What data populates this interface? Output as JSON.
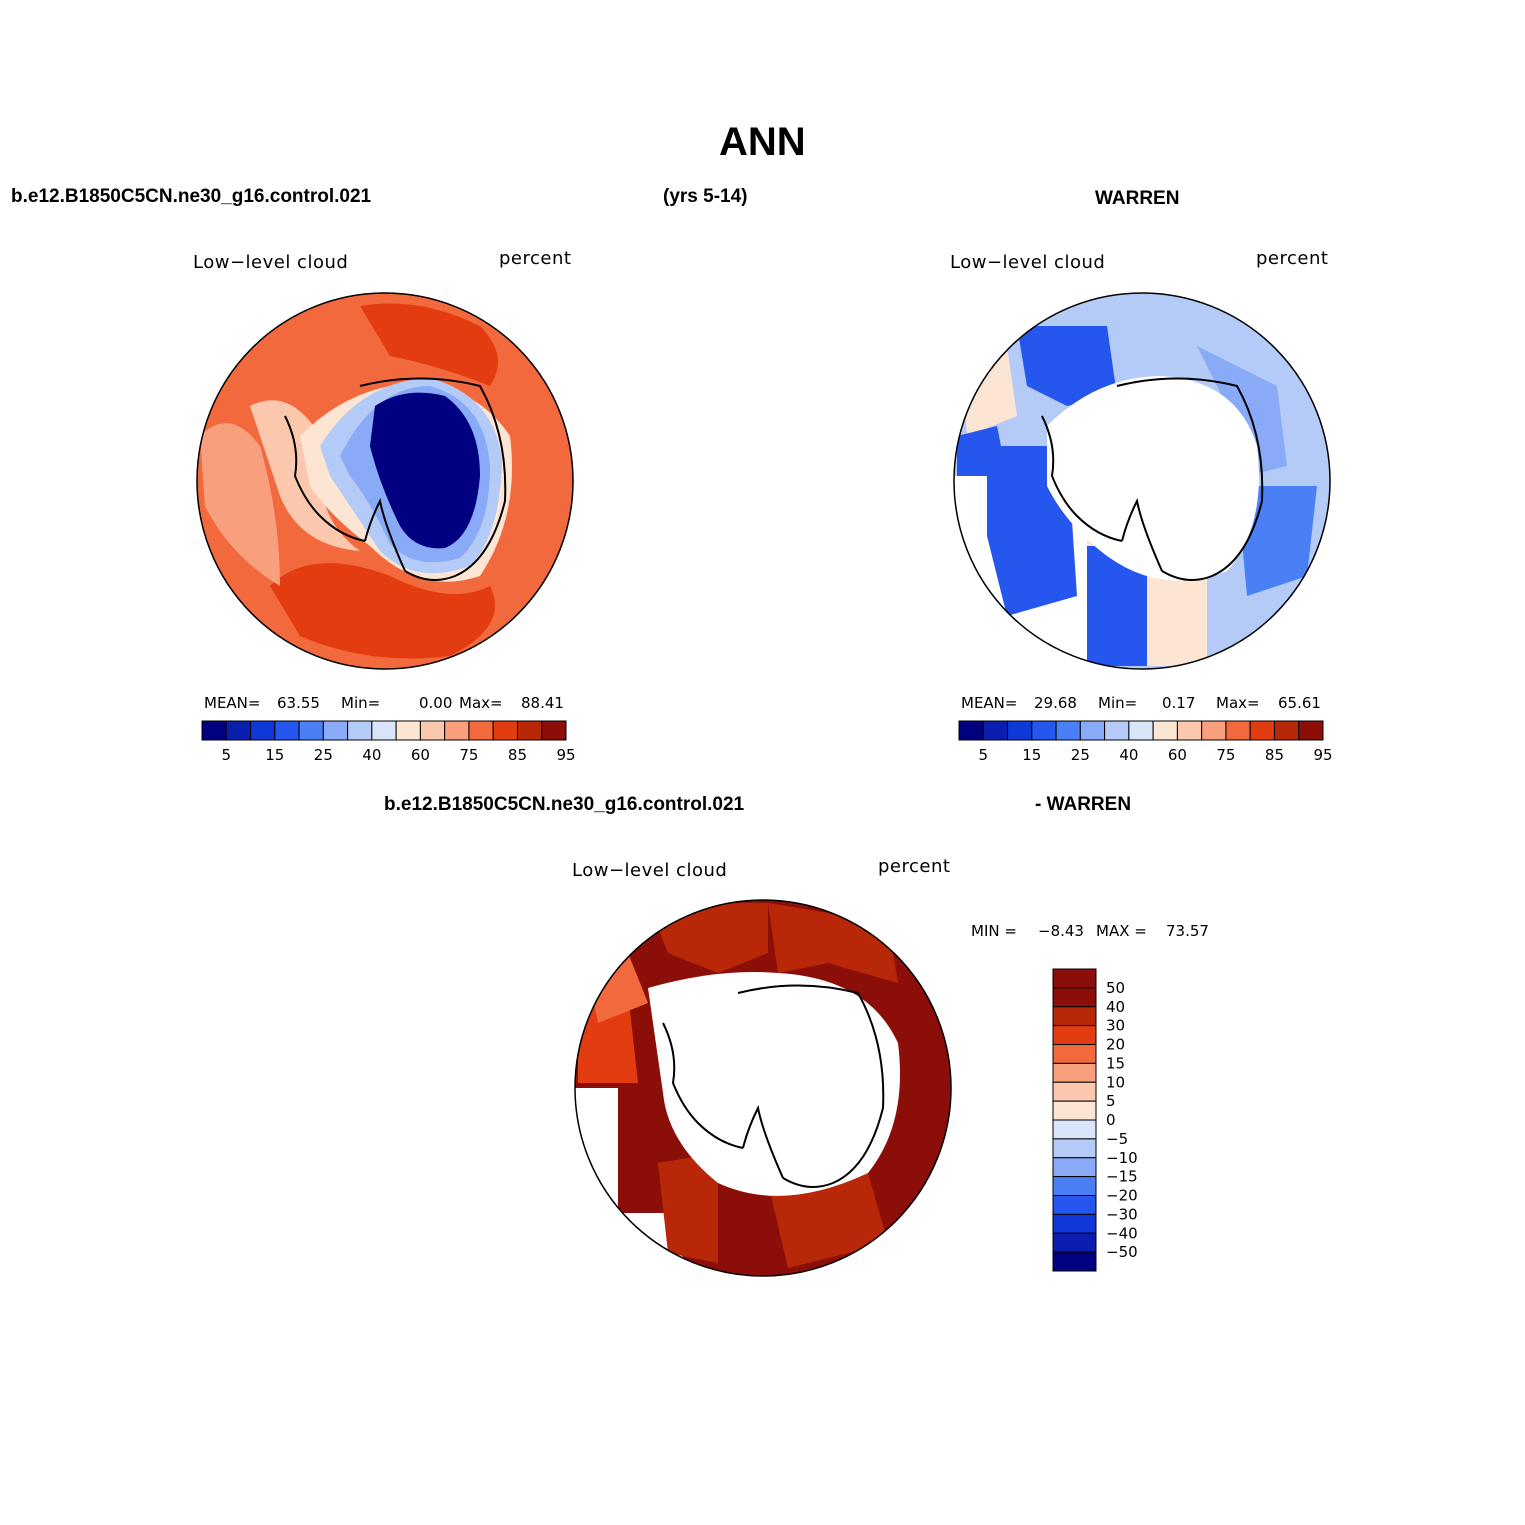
{
  "title": "ANN",
  "top_header": {
    "case_name": "b.e12.B1850C5CN.ne30_g16.control.021",
    "years": "(yrs 5-14)",
    "obs_name": "WARREN"
  },
  "panels": {
    "model": {
      "variable": "Low−level cloud",
      "units": "percent",
      "mean_label": "MEAN=",
      "mean_value": "63.55",
      "min_label": "Min=",
      "min_value": "0.00",
      "max_label": "Max=",
      "max_value": "88.41"
    },
    "obs": {
      "variable": "Low−level cloud",
      "units": "percent",
      "mean_label": "MEAN=",
      "mean_value": "29.68",
      "min_label": "Min=",
      "min_value": "0.17",
      "max_label": "Max=",
      "max_value": "65.61"
    },
    "diff": {
      "header_case": "b.e12.B1850C5CN.ne30_g16.control.021",
      "header_obs": "- WARREN",
      "variable": "Low−level cloud",
      "units": "percent",
      "min_label": "MIN =",
      "min_value": "−8.43",
      "max_label": "MAX =",
      "max_value": "73.57"
    }
  },
  "colorbar_abs": {
    "colors": [
      "#000080",
      "#0a1fb0",
      "#1037d8",
      "#2556ee",
      "#4a7ff5",
      "#89aaf6",
      "#b5cbf7",
      "#d9e6fa",
      "#fde5d3",
      "#fbc8ae",
      "#f8a07e",
      "#f3693e",
      "#e33c10",
      "#b82808",
      "#8c0e08"
    ],
    "tick_labels": [
      "5",
      "15",
      "25",
      "40",
      "60",
      "75",
      "85",
      "95"
    ]
  },
  "colorbar_diff": {
    "colors": [
      "#8c0e08",
      "#b82808",
      "#e33c10",
      "#f3693e",
      "#f8a07e",
      "#fbc8ae",
      "#fde5d3",
      "#d9e6fa",
      "#b5cbf7",
      "#89aaf6",
      "#4a7ff5",
      "#2556ee",
      "#1037d8",
      "#0a1fb0",
      "#000080"
    ],
    "tick_labels": [
      "50",
      "40",
      "30",
      "20",
      "15",
      "10",
      "5",
      "0",
      "−5",
      "−10",
      "−15",
      "−20",
      "−30",
      "−40",
      "−50"
    ]
  }
}
